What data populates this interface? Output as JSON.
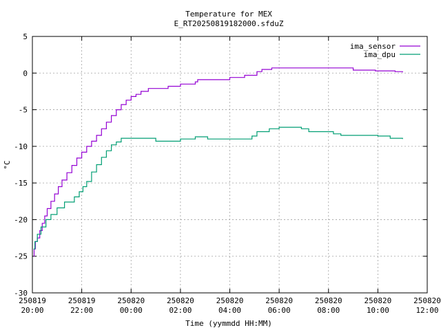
{
  "chart_data": {
    "type": "line",
    "title": "Temperature for MEX",
    "subtitle": "E_RT20250819182000.sfduZ",
    "xlabel": "Time (yymmdd HH:MM)",
    "ylabel": "°C",
    "xlim": [
      0,
      16
    ],
    "ylim": [
      -30,
      5
    ],
    "grid": true,
    "legend_position": "top-right",
    "yticks": [
      -30,
      -25,
      -20,
      -15,
      -10,
      -5,
      0,
      5
    ],
    "xticks": [
      {
        "value": 0,
        "date": "250819",
        "time": "20:00"
      },
      {
        "value": 2,
        "date": "250819",
        "time": "22:00"
      },
      {
        "value": 4,
        "date": "250820",
        "time": "00:00"
      },
      {
        "value": 6,
        "date": "250820",
        "time": "02:00"
      },
      {
        "value": 8,
        "date": "250820",
        "time": "04:00"
      },
      {
        "value": 10,
        "date": "250820",
        "time": "06:00"
      },
      {
        "value": 12,
        "date": "250820",
        "time": "08:00"
      },
      {
        "value": 14,
        "date": "250820",
        "time": "10:00"
      },
      {
        "value": 16,
        "date": "250820",
        "time": "12:00"
      }
    ],
    "series": [
      {
        "name": "ima_sensor",
        "color": "#9400d3",
        "step": true,
        "points": [
          [
            0.05,
            -25
          ],
          [
            0.07,
            -24
          ],
          [
            0.12,
            -23
          ],
          [
            0.2,
            -22.5
          ],
          [
            0.3,
            -21.5
          ],
          [
            0.4,
            -20.5
          ],
          [
            0.5,
            -19.5
          ],
          [
            0.6,
            -18.5
          ],
          [
            0.75,
            -17.5
          ],
          [
            0.9,
            -16.5
          ],
          [
            1.05,
            -15.5
          ],
          [
            1.2,
            -14.6
          ],
          [
            1.4,
            -13.6
          ],
          [
            1.6,
            -12.6
          ],
          [
            1.8,
            -11.6
          ],
          [
            2.0,
            -10.8
          ],
          [
            2.2,
            -10.0
          ],
          [
            2.4,
            -9.3
          ],
          [
            2.6,
            -8.5
          ],
          [
            2.8,
            -7.6
          ],
          [
            3.0,
            -6.7
          ],
          [
            3.2,
            -5.8
          ],
          [
            3.4,
            -5.0
          ],
          [
            3.6,
            -4.3
          ],
          [
            3.8,
            -3.7
          ],
          [
            4.0,
            -3.2
          ],
          [
            4.2,
            -2.9
          ],
          [
            4.4,
            -2.5
          ],
          [
            4.7,
            -2.1
          ],
          [
            5.5,
            -1.8
          ],
          [
            6.0,
            -1.5
          ],
          [
            6.6,
            -1.2
          ],
          [
            6.7,
            -0.9
          ],
          [
            8.0,
            -0.6
          ],
          [
            8.6,
            -0.3
          ],
          [
            9.1,
            0.2
          ],
          [
            9.3,
            0.5
          ],
          [
            9.7,
            0.7
          ],
          [
            13.0,
            0.4
          ],
          [
            13.9,
            0.3
          ],
          [
            14.7,
            0.2
          ],
          [
            15.0,
            0.1
          ]
        ]
      },
      {
        "name": "ima_dpu",
        "color": "#009e73",
        "step": true,
        "points": [
          [
            0.05,
            -24
          ],
          [
            0.1,
            -23
          ],
          [
            0.2,
            -22
          ],
          [
            0.35,
            -21
          ],
          [
            0.55,
            -20
          ],
          [
            0.75,
            -19.3
          ],
          [
            1.0,
            -18.4
          ],
          [
            1.3,
            -17.6
          ],
          [
            1.7,
            -16.9
          ],
          [
            1.9,
            -16.2
          ],
          [
            2.05,
            -15.5
          ],
          [
            2.2,
            -14.8
          ],
          [
            2.4,
            -13.5
          ],
          [
            2.6,
            -12.5
          ],
          [
            2.8,
            -11.5
          ],
          [
            3.0,
            -10.6
          ],
          [
            3.2,
            -9.8
          ],
          [
            3.4,
            -9.4
          ],
          [
            3.6,
            -8.9
          ],
          [
            5.0,
            -9.3
          ],
          [
            6.0,
            -9.0
          ],
          [
            6.6,
            -8.7
          ],
          [
            7.1,
            -9.0
          ],
          [
            8.9,
            -8.6
          ],
          [
            9.1,
            -8.0
          ],
          [
            9.6,
            -7.6
          ],
          [
            10.0,
            -7.4
          ],
          [
            10.9,
            -7.6
          ],
          [
            11.2,
            -8.0
          ],
          [
            12.2,
            -8.3
          ],
          [
            12.5,
            -8.5
          ],
          [
            14.0,
            -8.6
          ],
          [
            14.5,
            -8.9
          ],
          [
            15.0,
            -9.0
          ]
        ]
      }
    ]
  }
}
